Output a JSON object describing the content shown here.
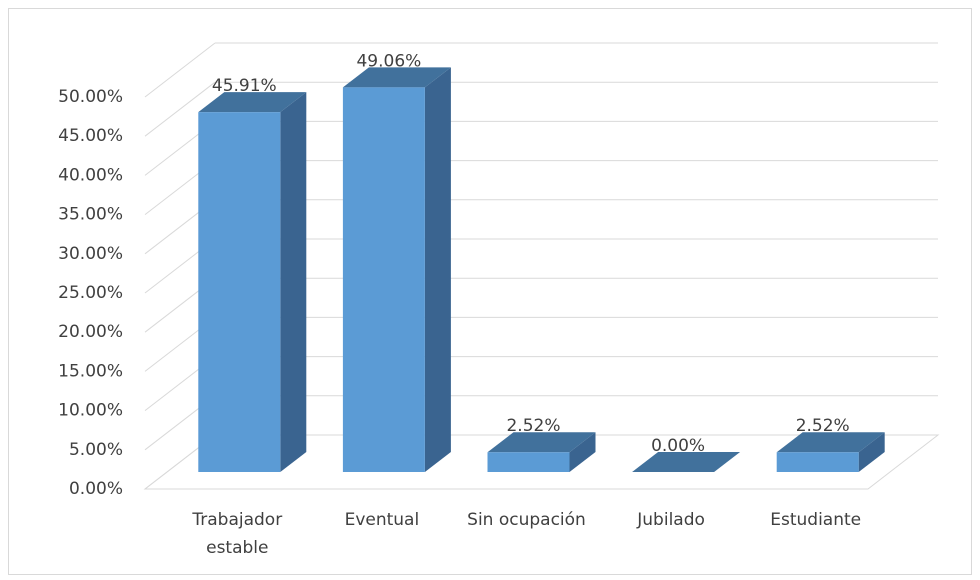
{
  "chart_data": {
    "type": "bar3d",
    "categories": [
      "Trabajador estable",
      "Eventual",
      "Sin ocupación",
      "Jubilado",
      "Estudiante"
    ],
    "values": [
      45.91,
      49.06,
      2.52,
      0,
      2.52
    ],
    "value_labels": [
      "45.91%",
      "49.06%",
      "2.52%",
      "0.00%",
      "2.52%"
    ],
    "color": "#5b9bd5",
    "ylim": [
      0,
      50
    ],
    "yticks": [
      {
        "value": 0,
        "label": "0.00%"
      },
      {
        "value": 5,
        "label": "5.00%"
      },
      {
        "value": 10,
        "label": "10.00%"
      },
      {
        "value": 15,
        "label": "15.00%"
      },
      {
        "value": 20,
        "label": "20.00%"
      },
      {
        "value": 25,
        "label": "25.00%"
      },
      {
        "value": 30,
        "label": "30.00%"
      },
      {
        "value": 35,
        "label": "35.00%"
      },
      {
        "value": 40,
        "label": "40.00%"
      },
      {
        "value": 45,
        "label": "45.00%"
      },
      {
        "value": 50,
        "label": "50.00%"
      }
    ],
    "grid": true
  }
}
